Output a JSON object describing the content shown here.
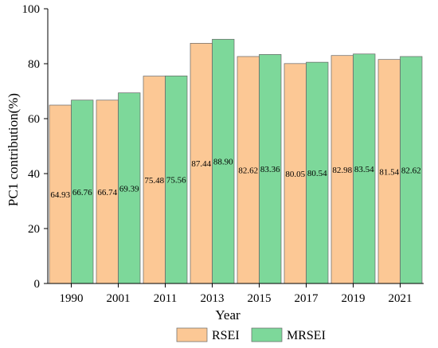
{
  "chart_data": {
    "type": "bar",
    "title": "",
    "xlabel": "Year",
    "ylabel": "PC1 contribution(%)",
    "ylim": [
      0,
      100
    ],
    "yticks": [
      0,
      20,
      40,
      60,
      80,
      100
    ],
    "grid": false,
    "legend_position": "bottom",
    "categories": [
      "1990",
      "2001",
      "2011",
      "2013",
      "2015",
      "2017",
      "2019",
      "2021"
    ],
    "series": [
      {
        "name": "RSEI",
        "color": "#fcc895",
        "values": [
          64.93,
          66.74,
          75.48,
          87.44,
          82.62,
          80.05,
          82.98,
          81.54
        ],
        "labels": [
          "64.93",
          "66.74",
          "75.48",
          "87.44",
          "82.62",
          "80.05",
          "82.98",
          "81.54"
        ]
      },
      {
        "name": "MRSEI",
        "color": "#7dd89a",
        "values": [
          66.76,
          69.39,
          75.56,
          88.9,
          83.36,
          80.54,
          83.54,
          82.62
        ],
        "labels": [
          "66.76",
          "69.39",
          "75.56",
          "88.90",
          "83.36",
          "80.54",
          "83.54",
          "82.62"
        ]
      }
    ]
  }
}
